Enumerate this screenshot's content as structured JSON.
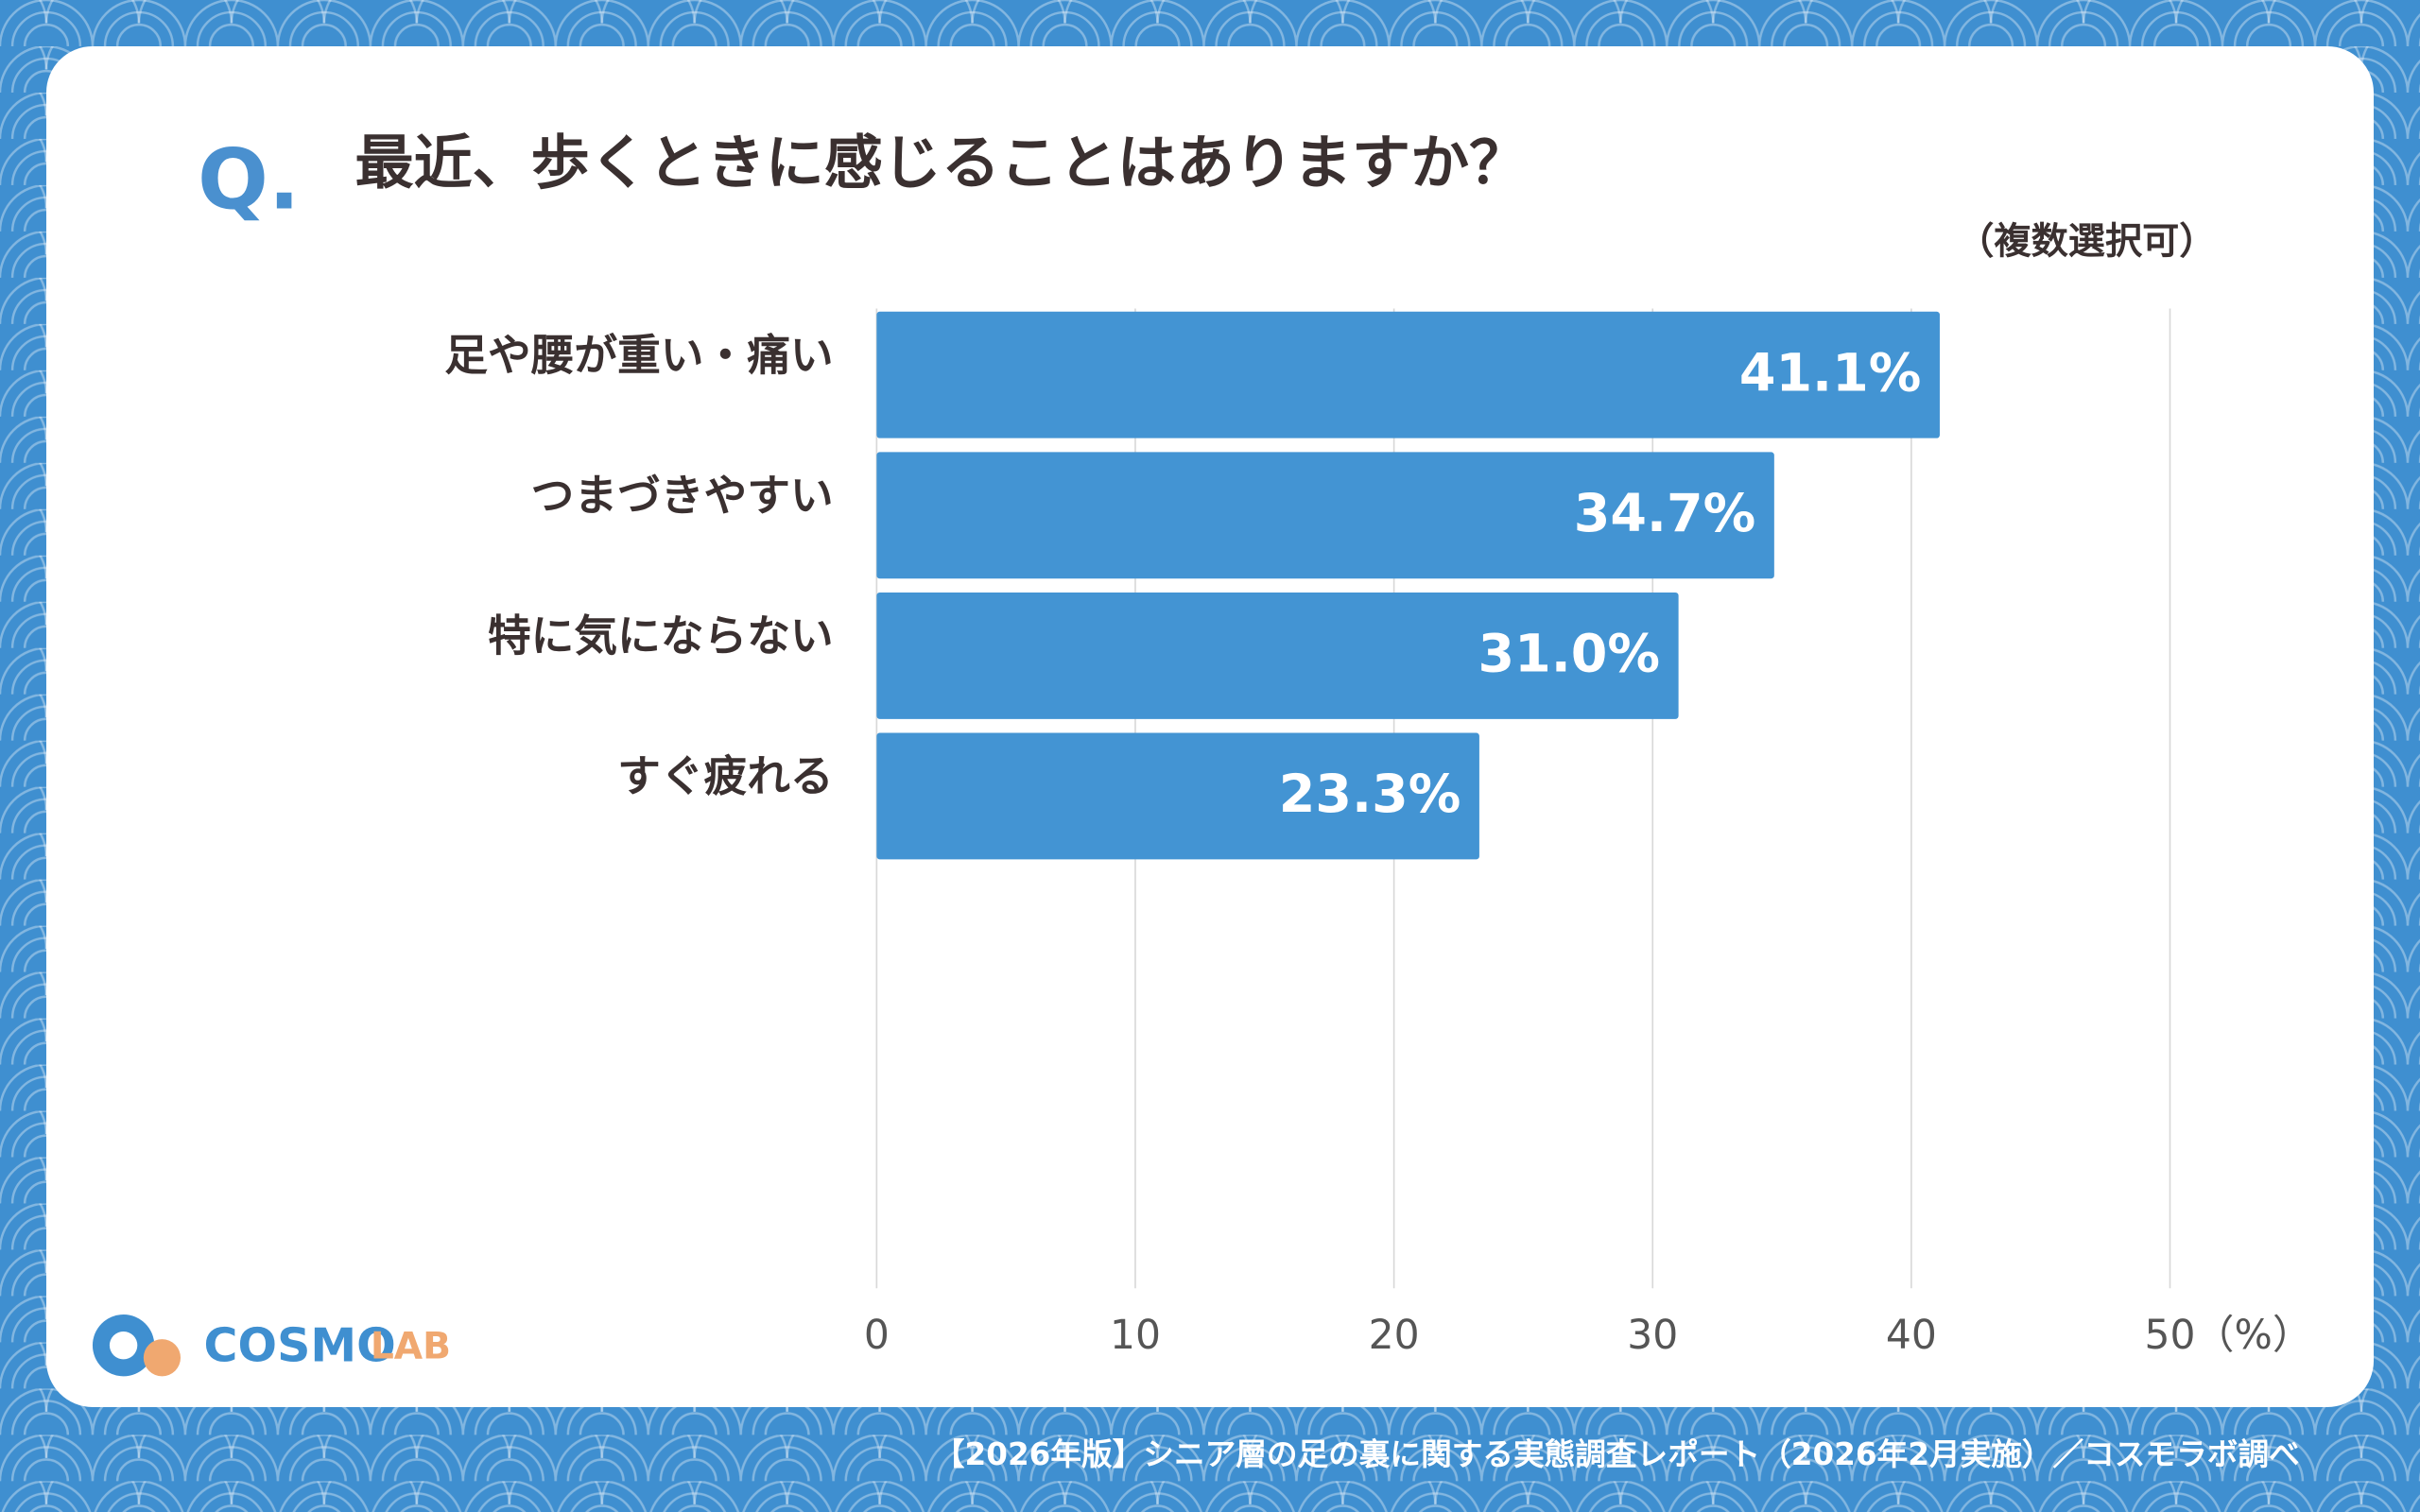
{
  "header": {
    "q": "Q.",
    "title": "最近、歩くときに感じることはありますか？",
    "note": "（複数選択可）"
  },
  "chart_data": {
    "type": "bar",
    "orientation": "horizontal",
    "categories": [
      "足や腰が重い・痛い",
      "つまづきやすい",
      "特に気にならない",
      "すぐ疲れる"
    ],
    "values": [
      41.1,
      34.7,
      31.0,
      23.3
    ],
    "value_labels": [
      "41.1%",
      "34.7%",
      "31.0%",
      "23.3%"
    ],
    "color": "#4394d3",
    "xlim": [
      0,
      50
    ],
    "xticks": [
      0,
      10,
      20,
      30,
      40,
      50
    ],
    "x_unit": "（%）",
    "grid": true
  },
  "logo": {
    "word1": "COSMO",
    "word2": "LAB"
  },
  "footer": "【2026年版】シニア層の足の裏に関する実態調査レポート（2026年2月実施）／コスモラボ調べ"
}
